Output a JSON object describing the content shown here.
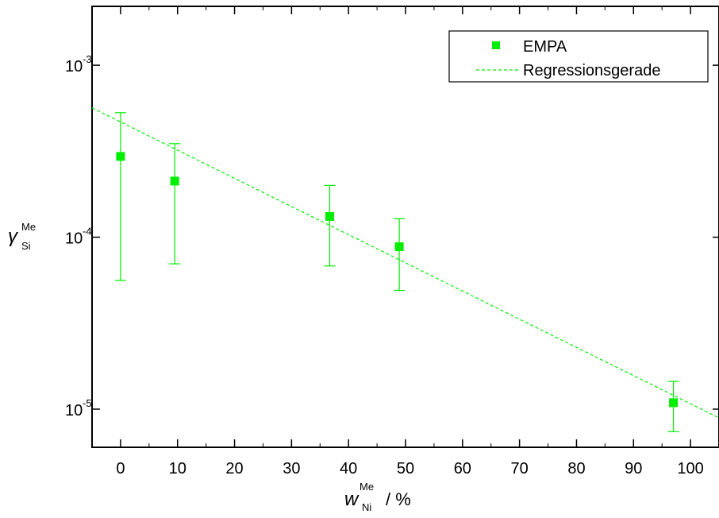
{
  "chart_data": {
    "type": "scatter",
    "xlabel": {
      "main": "w",
      "superscript": "Me",
      "subscript": "Ni",
      "unit": "/ %"
    },
    "ylabel": {
      "main": "γ",
      "superscript": "Me",
      "subscript": "Si"
    },
    "xlim": [
      -5,
      105
    ],
    "ylim": [
      6e-06,
      0.0022
    ],
    "yscale": "log",
    "grid": false,
    "legend_position": "top-right",
    "x_ticks": [
      0,
      10,
      20,
      30,
      40,
      50,
      60,
      70,
      80,
      90,
      100
    ],
    "y_ticks": [
      {
        "value": 1e-05,
        "base": "10",
        "exponent": "-5"
      },
      {
        "value": 0.0001,
        "base": "10",
        "exponent": "-4"
      },
      {
        "value": 0.001,
        "base": "10",
        "exponent": "-3"
      }
    ],
    "series": [
      {
        "name": "EMPA",
        "kind": "markers-with-error-bars",
        "color": "#00ee00",
        "marker": "square",
        "points": [
          {
            "x": 0,
            "y": 0.000295,
            "ylow": 5.6e-05,
            "yhigh": 0.00053
          },
          {
            "x": 9.5,
            "y": 0.000212,
            "ylow": 7e-05,
            "yhigh": 0.00035
          },
          {
            "x": 36.7,
            "y": 0.000132,
            "ylow": 6.8e-05,
            "yhigh": 0.0002
          },
          {
            "x": 48.9,
            "y": 8.8e-05,
            "ylow": 4.9e-05,
            "yhigh": 0.000128
          },
          {
            "x": 97,
            "y": 1.09e-05,
            "ylow": 7.4e-06,
            "yhigh": 1.45e-05
          }
        ]
      },
      {
        "name": "Regressionsgerade",
        "kind": "dashed-line",
        "color": "#00ee00",
        "points": [
          {
            "x": -5,
            "y": 0.000565
          },
          {
            "x": 105,
            "y": 8.9e-06
          }
        ]
      }
    ]
  }
}
